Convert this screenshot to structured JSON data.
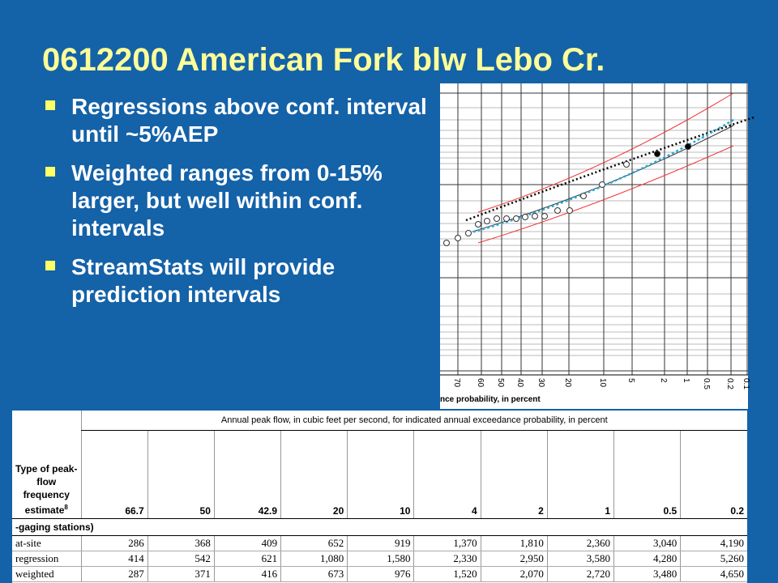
{
  "title": "0612200 American Fork blw Lebo Cr.",
  "bullets": [
    "Regressions above conf. interval until ~5%AEP",
    "Weighted ranges from 0-15% larger, but well within conf. intervals",
    "StreamStats will provide prediction intervals"
  ],
  "plot": {
    "x_tick_labels": [
      "70",
      "60",
      "50",
      "40",
      "30",
      "20",
      "10",
      "5",
      "2",
      "1",
      "0.5",
      "0.2",
      "0.1"
    ],
    "x_axis_label": "nce probability, in percent"
  },
  "table": {
    "caption": "Annual peak flow, in cubic feet per second, for indicated annual exceedance probability, in percent",
    "row_header": "Type of peak-flow frequency estimate",
    "row_header_note": "8",
    "columns": [
      "66.7",
      "50",
      "42.9",
      "20",
      "10",
      "4",
      "2",
      "1",
      "0.5",
      "0.2"
    ],
    "section": "-gaging stations)",
    "rows": [
      {
        "label": "at-site",
        "values": [
          "286",
          "368",
          "409",
          "652",
          "919",
          "1,370",
          "1,810",
          "2,360",
          "3,040",
          "4,190"
        ]
      },
      {
        "label": "regression",
        "values": [
          "414",
          "542",
          "621",
          "1,080",
          "1,580",
          "2,330",
          "2,950",
          "3,580",
          "4,280",
          "5,260"
        ]
      },
      {
        "label": "weighted",
        "values": [
          "287",
          "371",
          "416",
          "673",
          "976",
          "1,520",
          "2,070",
          "2,720",
          "3,480",
          "4,650"
        ]
      }
    ]
  }
}
